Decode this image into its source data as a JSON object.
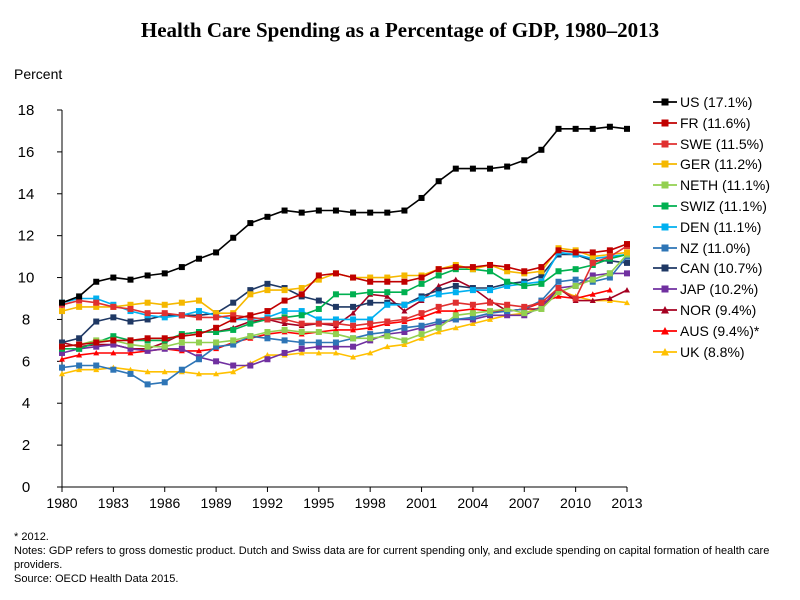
{
  "title": "Health Care Spending as a Percentage of GDP, 1980–2013",
  "ylabel": "Percent",
  "footnotes": {
    "star": "* 2012.",
    "notes": "Notes: GDP refers to gross domestic product. Dutch and Swiss data are for current spending only, and exclude spending on capital formation of health care providers.",
    "source": "Source: OECD Health Data 2015."
  },
  "chart_data": {
    "type": "line",
    "title": "Health Care Spending as a Percentage of GDP, 1980–2013",
    "xlabel": "",
    "ylabel": "Percent",
    "ylim": [
      0,
      18
    ],
    "xlim": [
      1980,
      2013
    ],
    "yticks": [
      0,
      2,
      4,
      6,
      8,
      10,
      12,
      14,
      16,
      18
    ],
    "xticks": [
      1980,
      1983,
      1986,
      1989,
      1992,
      1995,
      1998,
      2001,
      2004,
      2007,
      2010,
      2013
    ],
    "grid": false,
    "legend_position": "right",
    "x": [
      1980,
      1981,
      1982,
      1983,
      1984,
      1985,
      1986,
      1987,
      1988,
      1989,
      1990,
      1991,
      1992,
      1993,
      1994,
      1995,
      1996,
      1997,
      1998,
      1999,
      2000,
      2001,
      2002,
      2003,
      2004,
      2005,
      2006,
      2007,
      2008,
      2009,
      2010,
      2011,
      2012,
      2013
    ],
    "series": [
      {
        "name": "US (17.1%)",
        "color": "#000000",
        "marker": "square",
        "values": [
          8.8,
          9.1,
          9.8,
          10.0,
          9.9,
          10.1,
          10.2,
          10.5,
          10.9,
          11.2,
          11.9,
          12.6,
          12.9,
          13.2,
          13.1,
          13.2,
          13.2,
          13.1,
          13.1,
          13.1,
          13.2,
          13.8,
          14.6,
          15.2,
          15.2,
          15.2,
          15.3,
          15.6,
          16.1,
          17.1,
          17.1,
          17.1,
          17.2,
          17.1
        ]
      },
      {
        "name": "FR (11.6%)",
        "color": "#c00000",
        "marker": "square",
        "values": [
          6.7,
          6.8,
          6.9,
          7.0,
          7.0,
          7.1,
          7.1,
          7.2,
          7.3,
          7.6,
          8.0,
          8.2,
          8.4,
          8.9,
          9.2,
          10.1,
          10.2,
          10.0,
          9.8,
          9.8,
          9.8,
          10.0,
          10.4,
          10.5,
          10.5,
          10.6,
          10.5,
          10.3,
          10.5,
          11.3,
          11.2,
          11.2,
          11.3,
          11.6
        ]
      },
      {
        "name": "SWE (11.5%)",
        "color": "#e03030",
        "marker": "square",
        "values": [
          8.7,
          8.9,
          8.8,
          8.6,
          8.5,
          8.3,
          8.3,
          8.2,
          8.1,
          8.1,
          8.2,
          8.1,
          8.0,
          8.0,
          7.8,
          7.8,
          7.8,
          7.7,
          7.8,
          7.9,
          8.0,
          8.3,
          8.6,
          8.8,
          8.7,
          8.8,
          8.7,
          8.6,
          8.8,
          9.5,
          9.0,
          10.7,
          11.0,
          11.5
        ]
      },
      {
        "name": "GER (11.2%)",
        "color": "#f5b800",
        "marker": "square",
        "values": [
          8.4,
          8.6,
          8.6,
          8.6,
          8.7,
          8.8,
          8.7,
          8.8,
          8.9,
          8.3,
          8.3,
          9.2,
          9.4,
          9.4,
          9.5,
          9.9,
          10.2,
          10.0,
          10.0,
          10.0,
          10.1,
          10.1,
          10.4,
          10.6,
          10.4,
          10.6,
          10.3,
          10.2,
          10.3,
          11.4,
          11.3,
          11.0,
          11.1,
          11.2
        ]
      },
      {
        "name": "NETH (11.1%)",
        "color": "#92d050",
        "marker": "square",
        "values": [
          6.7,
          6.8,
          7.0,
          7.0,
          6.8,
          6.7,
          6.7,
          6.9,
          6.9,
          6.9,
          7.0,
          7.2,
          7.4,
          7.5,
          7.4,
          7.4,
          7.3,
          7.1,
          7.1,
          7.2,
          7.0,
          7.3,
          7.6,
          8.2,
          8.3,
          8.4,
          8.5,
          8.3,
          8.5,
          9.3,
          9.6,
          9.9,
          10.2,
          11.1
        ]
      },
      {
        "name": "SWIZ (11.1%)",
        "color": "#00b050",
        "marker": "square",
        "values": [
          6.6,
          6.6,
          6.9,
          7.2,
          7.0,
          7.0,
          7.0,
          7.3,
          7.4,
          7.4,
          7.5,
          7.8,
          8.0,
          8.1,
          8.2,
          8.5,
          9.2,
          9.2,
          9.3,
          9.3,
          9.3,
          9.7,
          10.1,
          10.4,
          10.4,
          10.3,
          9.8,
          9.6,
          9.7,
          10.3,
          10.4,
          10.6,
          10.9,
          11.1
        ]
      },
      {
        "name": "DEN (11.1%)",
        "color": "#00b0f0",
        "marker": "square",
        "values": [
          8.8,
          9.0,
          9.0,
          8.7,
          8.4,
          8.2,
          8.1,
          8.2,
          8.4,
          8.2,
          8.0,
          8.0,
          8.1,
          8.4,
          8.4,
          8.0,
          8.0,
          8.0,
          8.0,
          8.7,
          8.7,
          9.0,
          9.2,
          9.3,
          9.4,
          9.4,
          9.6,
          9.7,
          9.8,
          11.2,
          11.1,
          10.9,
          11.0,
          11.1
        ]
      },
      {
        "name": "NZ (11.0%)",
        "color": "#2e75b6",
        "marker": "square",
        "values": [
          5.7,
          5.8,
          5.8,
          5.6,
          5.4,
          4.9,
          5.0,
          5.6,
          6.1,
          6.7,
          6.8,
          7.2,
          7.1,
          7.0,
          6.9,
          6.9,
          6.9,
          7.1,
          7.3,
          7.4,
          7.6,
          7.7,
          7.9,
          8.0,
          8.1,
          8.3,
          8.4,
          8.5,
          8.9,
          9.8,
          9.9,
          9.8,
          10.0,
          11.0
        ]
      },
      {
        "name": "CAN (10.7%)",
        "color": "#1f3864",
        "marker": "square",
        "values": [
          6.9,
          7.1,
          7.9,
          8.1,
          7.9,
          8.0,
          8.2,
          8.2,
          8.2,
          8.3,
          8.8,
          9.4,
          9.7,
          9.5,
          9.1,
          8.9,
          8.6,
          8.6,
          8.8,
          8.8,
          8.7,
          9.1,
          9.4,
          9.6,
          9.5,
          9.5,
          9.7,
          9.8,
          10.1,
          11.1,
          11.1,
          10.8,
          10.8,
          10.7
        ]
      },
      {
        "name": "JAP (10.2%)",
        "color": "#7030a0",
        "marker": "square",
        "values": [
          6.4,
          6.6,
          6.7,
          6.8,
          6.6,
          6.5,
          6.6,
          6.6,
          6.2,
          6.0,
          5.8,
          5.8,
          6.1,
          6.4,
          6.6,
          6.7,
          6.7,
          6.7,
          7.0,
          7.3,
          7.4,
          7.6,
          7.8,
          8.0,
          8.0,
          8.2,
          8.2,
          8.2,
          8.6,
          9.5,
          9.6,
          10.1,
          10.2,
          10.2
        ]
      },
      {
        "name": "NOR (9.4%)",
        "color": "#a50021",
        "marker": "triangle",
        "values": [
          6.9,
          6.7,
          6.8,
          6.8,
          6.6,
          6.6,
          6.9,
          7.3,
          7.4,
          7.4,
          7.6,
          7.9,
          8.0,
          7.8,
          7.7,
          7.8,
          7.7,
          8.3,
          9.2,
          9.1,
          8.4,
          8.9,
          9.6,
          9.9,
          9.5,
          8.9,
          8.4,
          8.5,
          8.5,
          9.5,
          8.9,
          8.9,
          9.0,
          9.4
        ]
      },
      {
        "name": "AUS (9.4%)*",
        "color": "#ff0000",
        "marker": "triangle",
        "values": [
          6.1,
          6.3,
          6.4,
          6.4,
          6.4,
          6.5,
          6.6,
          6.5,
          6.5,
          6.6,
          6.9,
          7.1,
          7.3,
          7.4,
          7.3,
          7.4,
          7.5,
          7.5,
          7.6,
          7.8,
          7.9,
          8.1,
          8.4,
          8.4,
          8.5,
          8.4,
          8.4,
          8.5,
          8.8,
          9.1,
          9.0,
          9.2,
          9.4,
          null
        ]
      },
      {
        "name": "UK (8.8%)",
        "color": "#ffc000",
        "marker": "triangle",
        "values": [
          5.4,
          5.6,
          5.6,
          5.7,
          5.6,
          5.5,
          5.5,
          5.5,
          5.4,
          5.4,
          5.5,
          5.9,
          6.3,
          6.3,
          6.4,
          6.4,
          6.4,
          6.2,
          6.4,
          6.7,
          6.8,
          7.1,
          7.4,
          7.6,
          7.8,
          8.0,
          8.2,
          8.3,
          8.6,
          9.4,
          9.1,
          8.9,
          8.9,
          8.8
        ]
      }
    ]
  }
}
